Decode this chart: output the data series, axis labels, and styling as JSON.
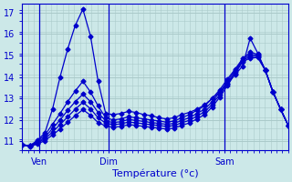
{
  "xlabel": "Température (°c)",
  "bg_color": "#cce8e8",
  "grid_color": "#aacaca",
  "line_color": "#0000cc",
  "ylim": [
    10.6,
    17.4
  ],
  "xlim": [
    0,
    46
  ],
  "xtick_positions": [
    3,
    15,
    35
  ],
  "xtick_labels": [
    "Ven",
    "Dim",
    "Sam"
  ],
  "ytick_positions": [
    11,
    12,
    13,
    14,
    15,
    16,
    17
  ],
  "ytick_labels": [
    "11",
    "12",
    "13",
    "14",
    "15",
    "16",
    "17"
  ],
  "vlines": [
    3,
    15,
    35
  ],
  "series": [
    [
      10.85,
      10.8,
      11.05,
      11.4,
      12.5,
      14.0,
      15.3,
      16.4,
      17.15,
      15.9,
      13.8,
      12.3,
      12.25,
      12.3,
      12.4,
      12.35,
      12.25,
      12.2,
      12.1,
      12.05,
      12.1,
      12.25,
      12.35,
      12.5,
      12.7,
      13.0,
      13.3,
      13.7,
      14.1,
      14.5,
      15.8,
      15.1,
      14.3,
      13.3,
      12.5,
      11.75
    ],
    [
      10.85,
      10.8,
      11.0,
      11.3,
      11.8,
      12.3,
      12.85,
      13.35,
      13.8,
      13.3,
      12.65,
      12.1,
      12.0,
      12.05,
      12.15,
      12.1,
      12.05,
      12.0,
      11.95,
      11.9,
      11.95,
      12.1,
      12.25,
      12.45,
      12.65,
      13.0,
      13.4,
      13.9,
      14.35,
      14.85,
      15.15,
      15.05,
      14.3,
      13.3,
      12.5,
      11.75
    ],
    [
      10.85,
      10.8,
      10.95,
      11.2,
      11.6,
      12.0,
      12.45,
      12.85,
      13.2,
      12.85,
      12.35,
      11.95,
      11.88,
      11.92,
      12.02,
      11.98,
      11.93,
      11.88,
      11.84,
      11.8,
      11.84,
      11.98,
      12.1,
      12.3,
      12.5,
      12.85,
      13.3,
      13.8,
      14.3,
      14.8,
      15.05,
      15.0,
      14.3,
      13.3,
      12.5,
      11.75
    ],
    [
      10.85,
      10.78,
      10.92,
      11.12,
      11.44,
      11.78,
      12.15,
      12.5,
      12.82,
      12.52,
      12.1,
      11.85,
      11.78,
      11.82,
      11.9,
      11.87,
      11.82,
      11.78,
      11.74,
      11.7,
      11.74,
      11.87,
      11.98,
      12.18,
      12.38,
      12.72,
      13.18,
      13.7,
      14.22,
      14.75,
      14.96,
      14.95,
      14.3,
      13.3,
      12.5,
      11.75
    ],
    [
      10.85,
      10.76,
      10.88,
      11.04,
      11.3,
      11.58,
      11.9,
      12.2,
      12.48,
      12.22,
      11.88,
      11.72,
      11.66,
      11.7,
      11.78,
      11.75,
      11.7,
      11.66,
      11.62,
      11.58,
      11.62,
      11.75,
      11.86,
      12.05,
      12.25,
      12.6,
      13.06,
      13.6,
      14.14,
      14.7,
      14.88,
      14.9,
      14.3,
      13.3,
      12.5,
      11.75
    ]
  ],
  "figsize": [
    3.2,
    2.0
  ],
  "dpi": 100,
  "marker": "D",
  "markersize": 2.5,
  "linewidth": 0.9
}
